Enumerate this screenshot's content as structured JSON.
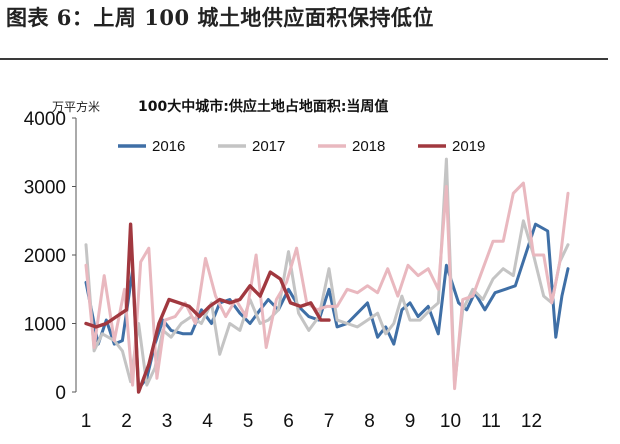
{
  "figure_title": "图表 6：上周 100 城土地供应面积保持低位",
  "chart_data": {
    "type": "line",
    "title": "100大中城市:供应土地占地面积:当周值",
    "ylabel": "万平方米",
    "xlabel": "",
    "ylim": [
      0,
      4000
    ],
    "yticks": [
      0,
      1000,
      2000,
      3000,
      4000
    ],
    "xlim": [
      1,
      13
    ],
    "xticks": [
      1,
      2,
      3,
      4,
      5,
      6,
      7,
      8,
      9,
      10,
      11,
      12
    ],
    "grid": false,
    "legend_position": "top",
    "colors": {
      "2016": "#3f6fa6",
      "2017": "#c4c4c4",
      "2018": "#e9b8bf",
      "2019": "#a1383f"
    },
    "series": [
      {
        "name": "2016",
        "x": [
          1,
          1.3,
          1.5,
          1.7,
          1.9,
          2.15,
          2.3,
          2.5,
          2.7,
          2.9,
          3.1,
          3.4,
          3.6,
          3.85,
          4.1,
          4.3,
          4.55,
          4.8,
          5.05,
          5.3,
          5.5,
          5.75,
          6.0,
          6.25,
          6.5,
          6.75,
          7.0,
          7.2,
          7.45,
          7.7,
          7.95,
          8.2,
          8.4,
          8.6,
          8.8,
          9.0,
          9.2,
          9.45,
          9.7,
          9.9,
          10.2,
          10.4,
          10.6,
          10.85,
          11.1,
          11.35,
          11.6,
          11.85,
          12.1,
          12.4,
          12.6,
          12.75,
          12.9
        ],
        "values": [
          1600,
          700,
          1050,
          700,
          750,
          1780,
          50,
          200,
          700,
          1050,
          900,
          850,
          850,
          1200,
          1000,
          1300,
          1350,
          1150,
          1000,
          1200,
          1350,
          1200,
          1500,
          1250,
          1100,
          1050,
          1500,
          950,
          1000,
          1150,
          1300,
          800,
          950,
          700,
          1200,
          1300,
          1100,
          1250,
          850,
          1850,
          1300,
          1200,
          1450,
          1200,
          1450,
          1500,
          1550,
          2000,
          2450,
          2350,
          800,
          1400,
          1800
        ]
      },
      {
        "name": "2017",
        "x": [
          1,
          1.2,
          1.4,
          1.7,
          1.9,
          2.1,
          2.3,
          2.5,
          2.7,
          2.9,
          3.1,
          3.35,
          3.6,
          3.85,
          4.1,
          4.3,
          4.55,
          4.8,
          5.05,
          5.3,
          5.5,
          5.75,
          6.0,
          6.25,
          6.5,
          6.75,
          7.0,
          7.2,
          7.45,
          7.7,
          7.95,
          8.2,
          8.4,
          8.6,
          8.8,
          9.0,
          9.25,
          9.5,
          9.7,
          9.9,
          10.1,
          10.3,
          10.55,
          10.8,
          11.05,
          11.3,
          11.55,
          11.8,
          12.05,
          12.3,
          12.5,
          12.7,
          12.9
        ],
        "values": [
          2150,
          600,
          850,
          750,
          600,
          150,
          1000,
          100,
          350,
          900,
          800,
          1000,
          1100,
          1000,
          1300,
          550,
          1000,
          900,
          1350,
          1000,
          1050,
          1200,
          2050,
          1150,
          900,
          1100,
          1800,
          1050,
          1000,
          950,
          1050,
          1150,
          850,
          1000,
          1400,
          1050,
          1050,
          1200,
          1300,
          3400,
          100,
          1200,
          1500,
          1350,
          1650,
          1800,
          1700,
          2500,
          2000,
          1400,
          1300,
          1900,
          2150
        ]
      },
      {
        "name": "2018",
        "x": [
          1,
          1.2,
          1.45,
          1.7,
          1.95,
          2.15,
          2.35,
          2.55,
          2.75,
          2.95,
          3.2,
          3.45,
          3.7,
          3.95,
          4.2,
          4.45,
          4.7,
          4.95,
          5.2,
          5.45,
          5.7,
          5.95,
          6.2,
          6.45,
          6.7,
          6.95,
          7.2,
          7.45,
          7.7,
          7.95,
          8.2,
          8.45,
          8.7,
          8.95,
          9.2,
          9.45,
          9.7,
          9.9,
          10.1,
          10.3,
          10.55,
          10.8,
          11.05,
          11.3,
          11.55,
          11.8,
          12.05,
          12.3,
          12.5,
          12.7,
          12.9
        ],
        "values": [
          1850,
          650,
          1700,
          750,
          1500,
          100,
          1900,
          2100,
          200,
          1050,
          1100,
          1300,
          1000,
          1950,
          1400,
          1100,
          1350,
          1100,
          2000,
          650,
          1350,
          1600,
          2100,
          1300,
          1200,
          1250,
          1250,
          1500,
          1450,
          1550,
          1450,
          1800,
          1400,
          1850,
          1700,
          1800,
          1500,
          3000,
          50,
          1350,
          1400,
          1800,
          2200,
          2200,
          2900,
          3050,
          2000,
          2000,
          1300,
          1900,
          2900
        ]
      },
      {
        "name": "2019",
        "x": [
          1,
          1.25,
          1.5,
          1.75,
          2.0,
          2.1,
          2.3,
          2.55,
          2.8,
          3.05,
          3.3,
          3.55,
          3.8,
          4.05,
          4.3,
          4.55,
          4.8,
          5.05,
          5.3,
          5.55,
          5.8,
          6.05,
          6.3,
          6.55,
          6.8,
          7.0
        ],
        "values": [
          1000,
          950,
          1000,
          1100,
          1200,
          2450,
          0,
          400,
          1000,
          1350,
          1300,
          1250,
          1100,
          1250,
          1350,
          1300,
          1350,
          1550,
          1400,
          1750,
          1650,
          1300,
          1250,
          1300,
          1050,
          1050
        ]
      }
    ]
  }
}
